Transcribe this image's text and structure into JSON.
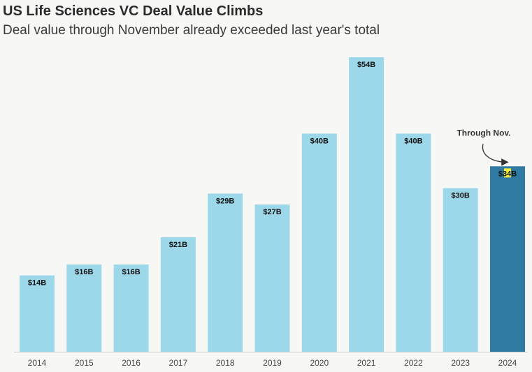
{
  "header": {
    "title": "US Life Sciences VC Deal Value Climbs",
    "subtitle": "Deal value through November already exceeded last year's total"
  },
  "colors": {
    "bar": "#9dd8ea",
    "highlight_bar": "#2e7aa3",
    "highlight_marker": "#f5ef3a",
    "axis": "#cccccc"
  },
  "chart_data": {
    "type": "bar",
    "categories": [
      "2014",
      "2015",
      "2016",
      "2017",
      "2018",
      "2019",
      "2020",
      "2021",
      "2022",
      "2023",
      "2024"
    ],
    "values": [
      14,
      16,
      16,
      21,
      29,
      27,
      40,
      54,
      40,
      30,
      34
    ],
    "labels": [
      "$14B",
      "$16B",
      "$16B",
      "$21B",
      "$29B",
      "$27B",
      "$40B",
      "$54B",
      "$40B",
      "$30B",
      "$34B"
    ],
    "unit": "$B",
    "ylim": [
      0,
      56
    ],
    "highlight_index": 10,
    "grid": false,
    "annotations": [
      {
        "text": "Through Nov.",
        "target": "2024"
      }
    ]
  }
}
